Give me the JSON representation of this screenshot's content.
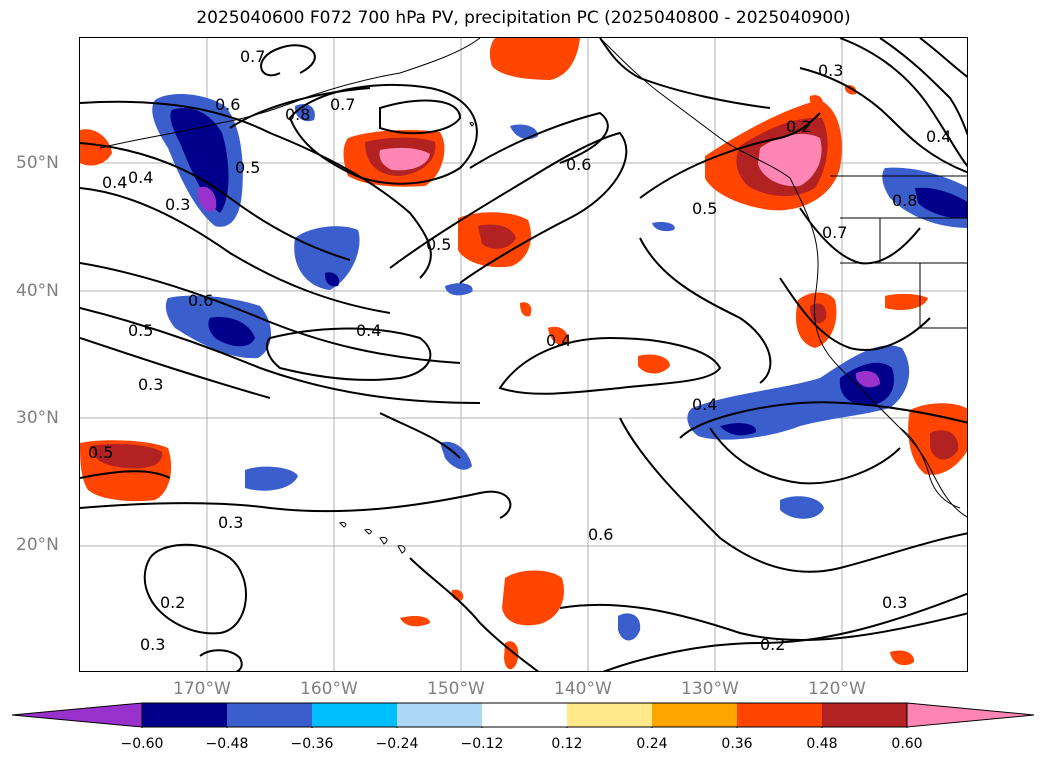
{
  "title": "2025040600 F072 700 hPa PV, precipitation PC (2025040800 - 2025040900)",
  "lat_labels": [
    "50°N",
    "40°N",
    "30°N",
    "20°N"
  ],
  "lon_labels": [
    "170°W",
    "160°W",
    "150°W",
    "140°W",
    "130°W",
    "120°W"
  ],
  "colorbar": {
    "colors": [
      "#9932cc",
      "#00008b",
      "#3a5fcd",
      "#00bfff",
      "#add8f5",
      "#ffffff",
      "#ffe98a",
      "#ffa500",
      "#ff4500",
      "#b22222",
      "#ff85b4"
    ],
    "tick_labels": [
      "−0.60",
      "−0.48",
      "−0.36",
      "−0.24",
      "−0.12",
      "0.12",
      "0.24",
      "0.36",
      "0.48",
      "0.60"
    ]
  },
  "contour_labels": [
    "0.7",
    "0.6",
    "0.5",
    "0.4",
    "0.3",
    "0.8",
    "0.7",
    "0.6",
    "0.5",
    "0.4",
    "0.3",
    "0.6",
    "0.5",
    "0.5",
    "0.4",
    "0.4",
    "0.3",
    "0.3",
    "0.2",
    "0.3",
    "0.2",
    "0.2",
    "0.3",
    "0.4",
    "0.8",
    "0.7",
    "0.6",
    "0.5",
    "0.4"
  ]
}
